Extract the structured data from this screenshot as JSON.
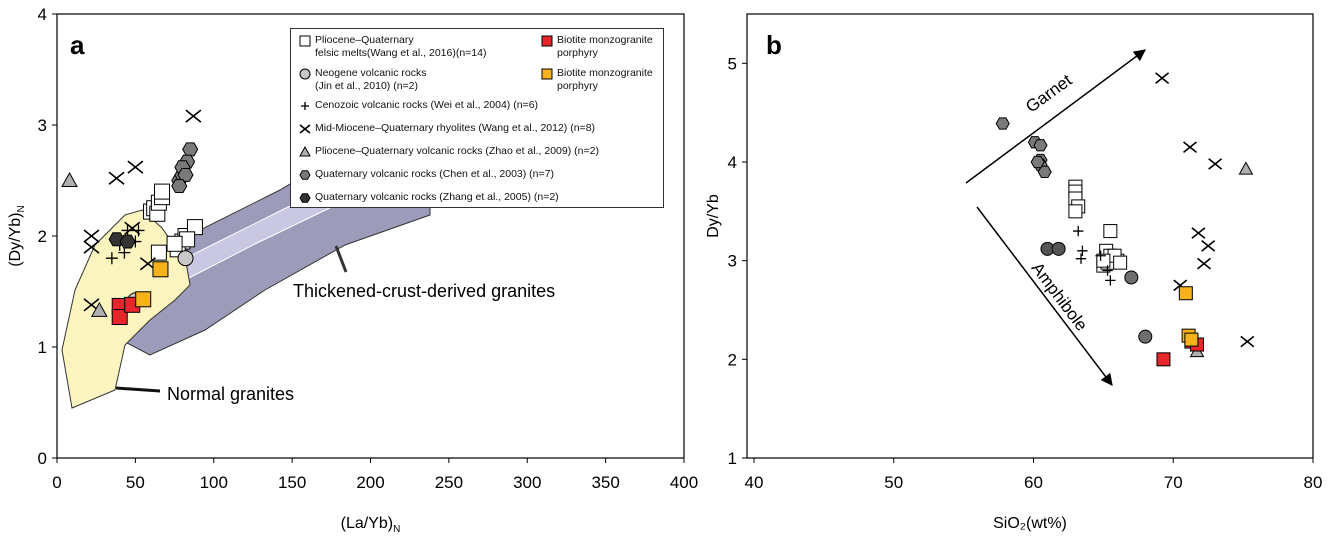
{
  "chart_data": [
    {
      "type": "scatter",
      "panel_label": "a",
      "xlabel": "(La/Yb)",
      "xlabel_sub": "N",
      "ylabel": "(Dy/Yb)",
      "ylabel_sub": "N",
      "xlim": [
        0,
        400
      ],
      "ylim": [
        0,
        4
      ],
      "xticks": [
        0,
        50,
        100,
        150,
        200,
        250,
        300,
        350,
        400
      ],
      "yticks": [
        0,
        1,
        2,
        3,
        4
      ],
      "annotations": [
        "Thickened-crust-derived granites",
        "Normal granites"
      ],
      "series": [
        {
          "name": "Pliocene–Quaternary\nfelsic melts(Wang et al., 2016)(n=14)",
          "marker": "square",
          "color": "#ffffff",
          "x": [
            60,
            62,
            64,
            65,
            67,
            67,
            65,
            78,
            80,
            82,
            88,
            77,
            83,
            75
          ],
          "values": [
            2.22,
            2.25,
            2.2,
            2.3,
            2.35,
            2.4,
            1.85,
            1.9,
            1.95,
            2.0,
            2.08,
            1.88,
            1.97,
            1.93
          ]
        },
        {
          "name": "Neogene volcanic rocks\n(Jin et al., 2010) (n=2)",
          "marker": "circle",
          "color": "#c8c8c8",
          "x": [
            50,
            82
          ],
          "values": [
            1.42,
            1.8
          ]
        },
        {
          "name": "Cenozoic volcanic rocks (Wei et al., 2004) (n=6)",
          "marker": "plus",
          "color": "#000000",
          "x": [
            35,
            43,
            50,
            52,
            45,
            40
          ],
          "values": [
            1.8,
            1.85,
            1.95,
            2.05,
            2.05,
            1.92
          ]
        },
        {
          "name": "Mid-Miocene–Quaternary rhyolites (Wang et al., 2012) (n=8)",
          "marker": "x",
          "color": "#000000",
          "x": [
            22,
            22,
            22,
            38,
            50,
            48,
            58,
            87
          ],
          "values": [
            2.0,
            1.9,
            1.38,
            2.52,
            2.62,
            2.07,
            1.75,
            3.08
          ]
        },
        {
          "name": "Pliocene–Quaternary volcanic rocks  (Zhao et al., 2009)  (n=2)",
          "marker": "triangle",
          "color": "#b0b0b0",
          "x": [
            8,
            27
          ],
          "values": [
            2.5,
            1.33
          ]
        },
        {
          "name": "Quaternary volcanic rocks (Chen et al., 2003) (n=7)",
          "marker": "hexagon",
          "color": "#7a7a7a",
          "x": [
            78,
            80,
            85,
            83,
            80,
            82,
            78
          ],
          "values": [
            2.5,
            2.55,
            2.78,
            2.67,
            2.62,
            2.55,
            2.45
          ]
        },
        {
          "name": "Quaternary volcanic rocks (Zhang et al., 2005)  (n=2)",
          "marker": "hexagon",
          "color": "#333333",
          "x": [
            38,
            45
          ],
          "values": [
            1.97,
            1.95
          ]
        },
        {
          "name": "Biotite monzogranite\nporphyry",
          "marker": "square",
          "color": "#e8252a",
          "x": [
            40,
            40,
            48
          ],
          "values": [
            1.37,
            1.27,
            1.38
          ]
        },
        {
          "name": "Biotite monzogranite\nporphyry",
          "marker": "square",
          "color": "#f5b21a",
          "x": [
            55,
            66
          ],
          "values": [
            1.43,
            1.7
          ]
        }
      ]
    },
    {
      "type": "scatter",
      "panel_label": "b",
      "xlabel": "SiO₂(wt%)",
      "ylabel": "Dy/Yb",
      "xlim": [
        39.5,
        80
      ],
      "ylim": [
        1,
        5.5
      ],
      "xticks": [
        40,
        50,
        60,
        70,
        80
      ],
      "yticks": [
        1,
        2,
        3,
        4,
        5
      ],
      "annotations": [
        "Garnet",
        "Amphibole"
      ],
      "series": [
        {
          "marker": "square",
          "color": "#ffffff",
          "x": [
            63,
            63,
            63,
            63.2,
            63,
            65.5,
            65.2,
            65.5,
            66,
            65,
            65.3,
            65.8,
            66.2,
            65
          ],
          "values": [
            3.75,
            3.7,
            3.63,
            3.55,
            3.5,
            3.3,
            3.1,
            3.05,
            3.0,
            2.95,
            2.98,
            3.05,
            2.98,
            3.0
          ]
        },
        {
          "marker": "circle",
          "color": "#6e6e6e",
          "x": [
            67,
            68
          ],
          "values": [
            2.83,
            2.23
          ]
        },
        {
          "marker": "plus",
          "color": "#000000",
          "x": [
            63.2,
            63.5,
            63.4,
            65.5,
            65.3,
            64.8
          ],
          "values": [
            3.3,
            3.1,
            3.02,
            2.8,
            2.9,
            3.05
          ]
        },
        {
          "marker": "x",
          "color": "#000000",
          "x": [
            69.2,
            71.2,
            73,
            71.8,
            72.5,
            72.2,
            70.5,
            75.3
          ],
          "values": [
            4.85,
            4.15,
            3.98,
            3.28,
            3.15,
            2.97,
            2.75,
            2.18
          ]
        },
        {
          "marker": "triangle",
          "color": "#b0b0b0",
          "x": [
            75.2,
            71.7
          ],
          "values": [
            3.93,
            2.08
          ]
        },
        {
          "marker": "hexagon",
          "color": "#7a7a7a",
          "x": [
            57.8,
            60.1,
            60.5,
            60.5,
            60.5,
            60.8,
            60.3
          ],
          "values": [
            4.39,
            4.2,
            4.17,
            4.02,
            3.97,
            3.9,
            4.0
          ]
        },
        {
          "marker": "circle",
          "color": "#555555",
          "x": [
            61,
            61.8
          ],
          "values": [
            3.12,
            3.12
          ]
        },
        {
          "marker": "square",
          "color": "#e8252a",
          "x": [
            69.3,
            71.3,
            71.7
          ],
          "values": [
            2.0,
            2.18,
            2.15
          ]
        },
        {
          "marker": "square",
          "color": "#f5b21a",
          "x": [
            70.9,
            71.1,
            71.3
          ],
          "values": [
            2.67,
            2.24,
            2.2
          ]
        }
      ]
    }
  ]
}
